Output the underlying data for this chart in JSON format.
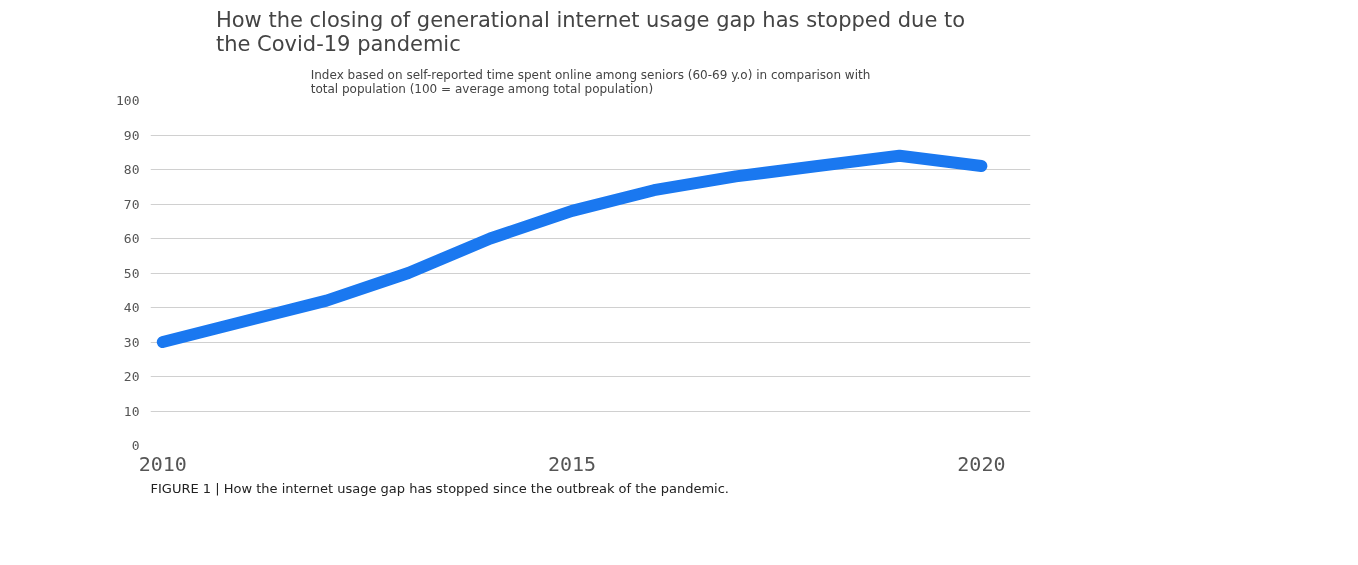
{
  "chart_data": {
    "type": "line",
    "title": "How the closing of generational internet usage gap has stopped due to the Covid-19 pandemic",
    "subtitle": "Index based on self-reported time spent online among seniors (60-69 y.o) in comparison with total population (100 = average among total population)",
    "annotations": [
      "FIGURE 1 | How the internet usage gap has stopped since the outbreak of the pandemic."
    ],
    "x": [
      2010,
      2011,
      2012,
      2013,
      2014,
      2015,
      2016,
      2017,
      2018,
      2019,
      2020
    ],
    "series": [
      {
        "color": "#1a78f0",
        "values": [
          30,
          36,
          42,
          50,
          60,
          68,
          74,
          78,
          81,
          84,
          81
        ]
      }
    ],
    "xlim": [
      2009.85,
      2020.6
    ],
    "xticks": [
      2010,
      2015,
      2020
    ],
    "ylim": [
      0,
      100
    ],
    "yticks": [
      0,
      10,
      20,
      30,
      40,
      50,
      60,
      70,
      80,
      90,
      100
    ],
    "grid": "y",
    "line_style": "solid"
  }
}
